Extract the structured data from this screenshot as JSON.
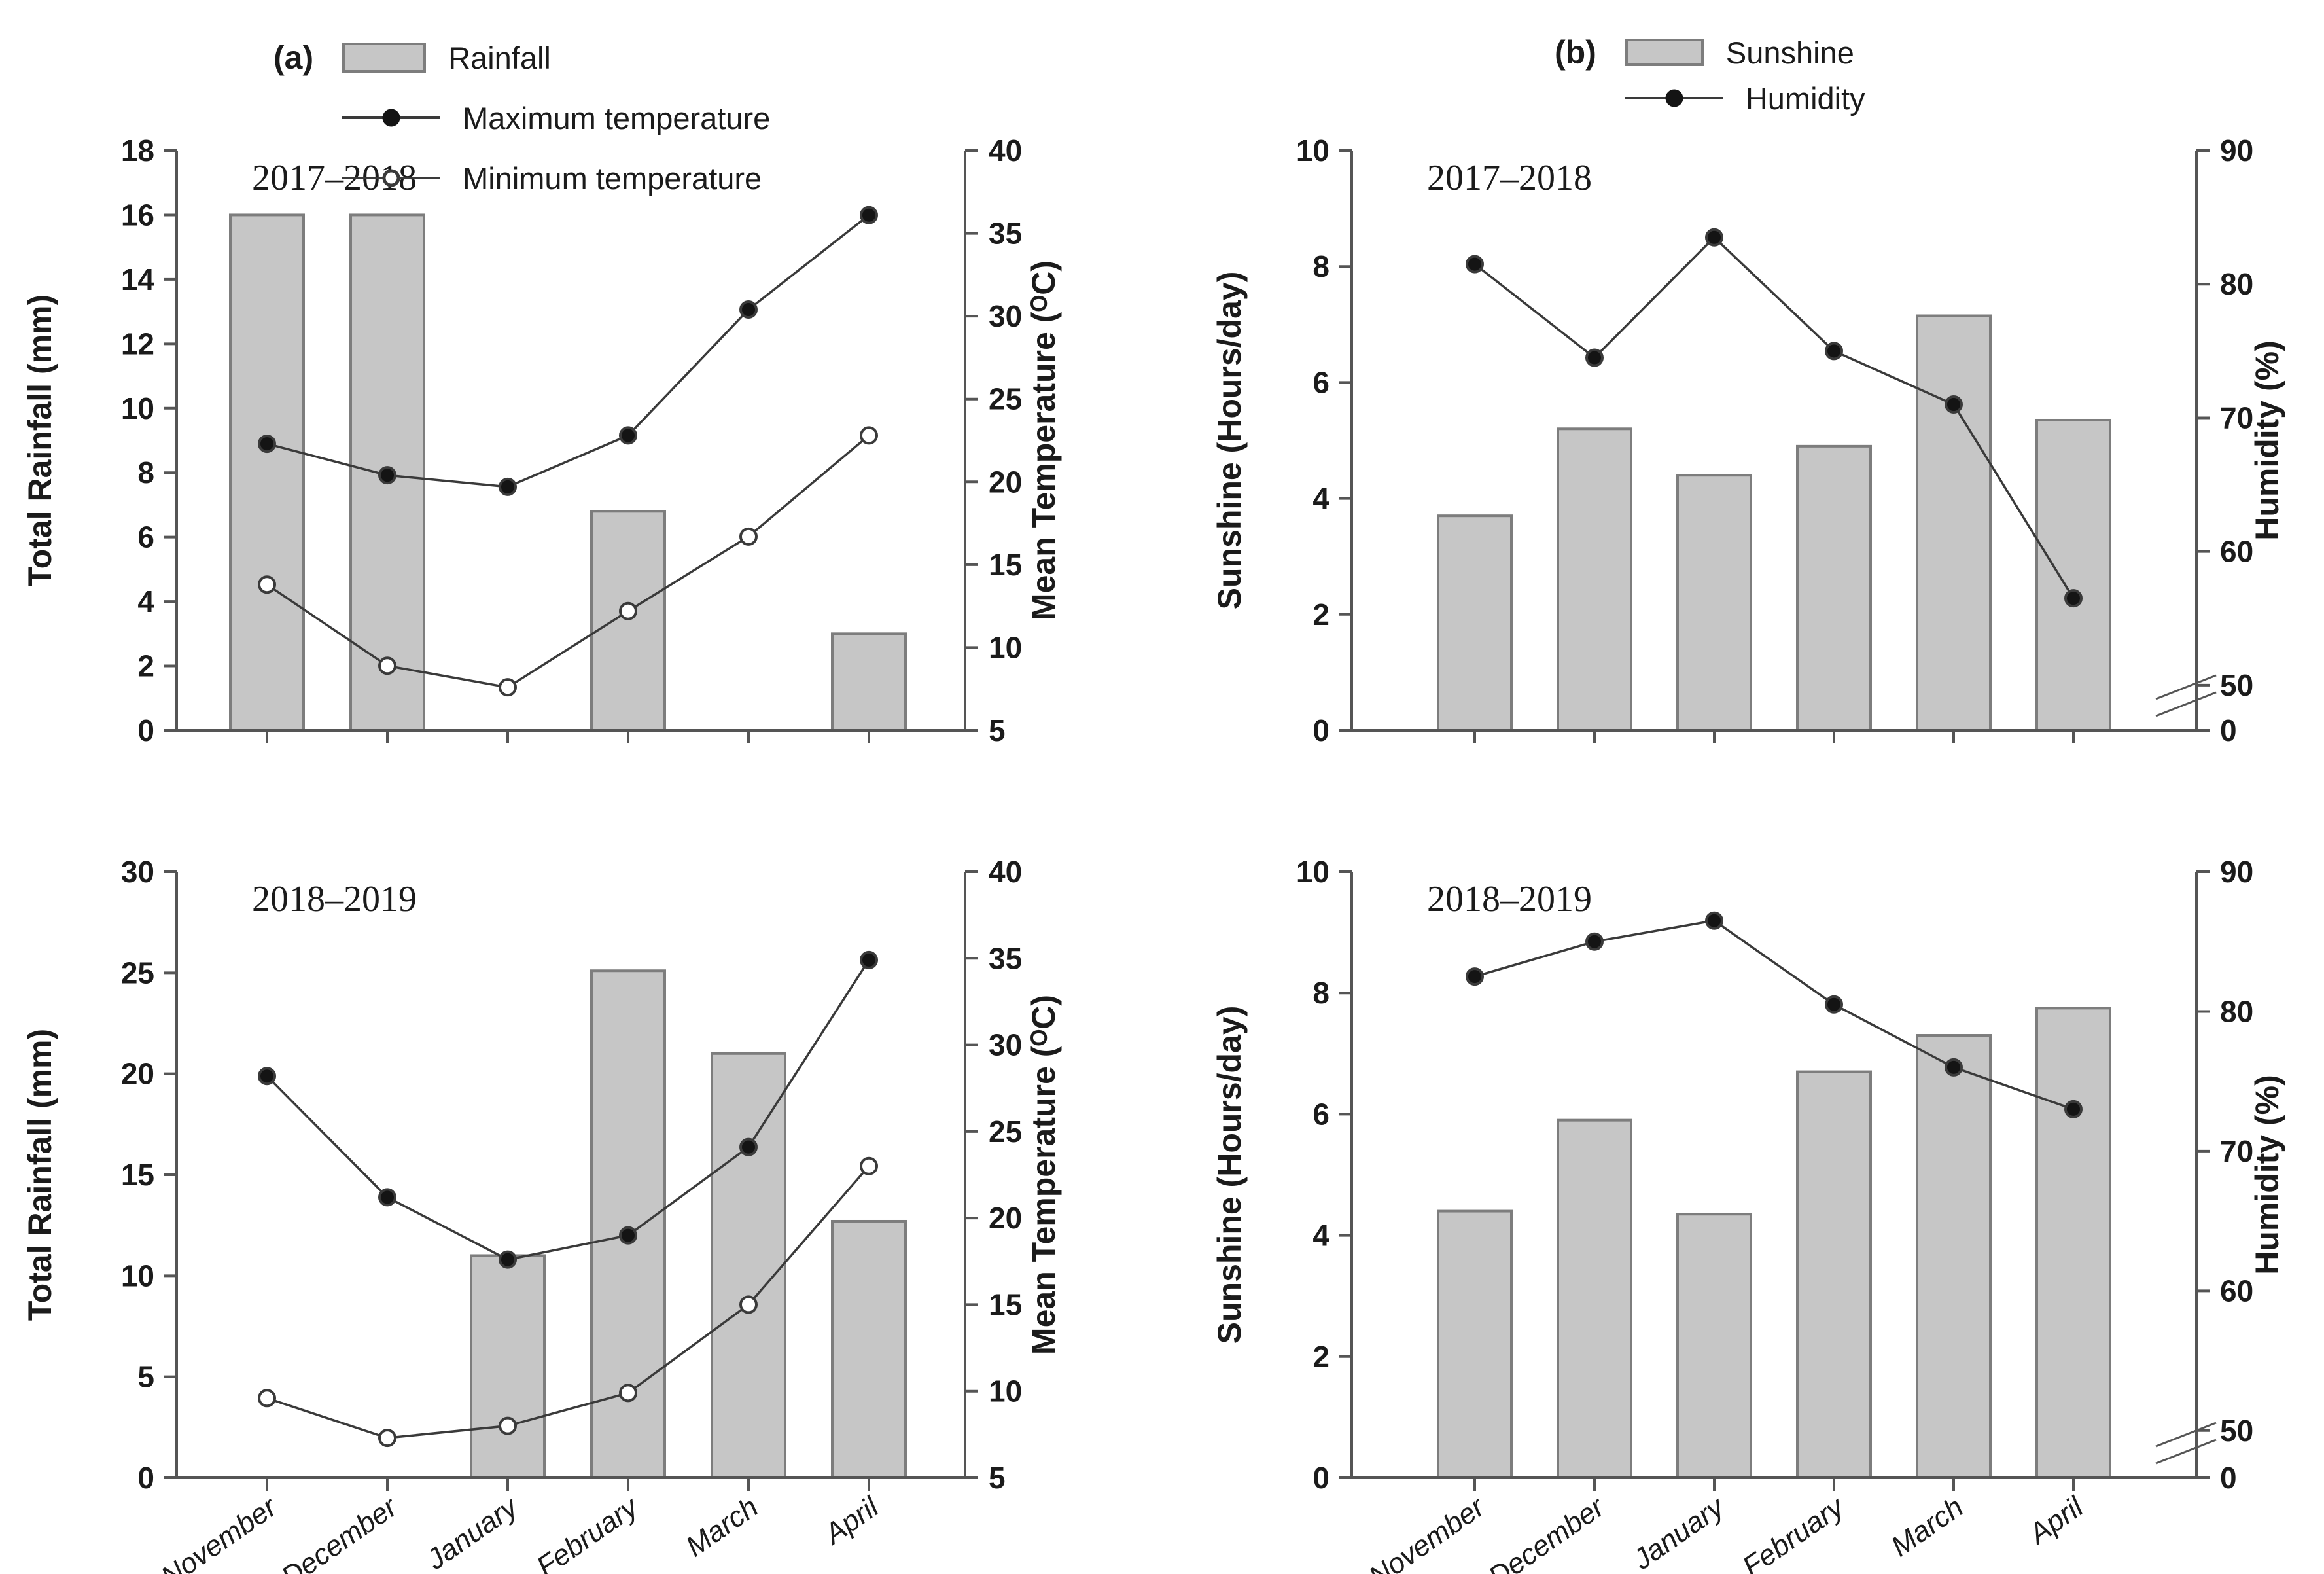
{
  "figure": {
    "panel_a_label": "(a)",
    "panel_b_label": "(b)",
    "months": [
      "November",
      "December",
      "January",
      "February",
      "March",
      "April"
    ]
  },
  "legend_a": {
    "rainfall": "Rainfall",
    "max_temp": "Maximum temperature",
    "min_temp": "Minimum temperature"
  },
  "legend_b": {
    "sunshine": "Sunshine",
    "humidity": "Humidity"
  },
  "colors": {
    "bar_fill": "#c6c6c6",
    "bar_stroke": "#7d7d7d",
    "line": "#3a3a3a",
    "marker_fill": "#141414",
    "axis": "#555555",
    "text": "#1b1b1b"
  },
  "chart_data": [
    {
      "id": "rain_2017",
      "type": "bar+line",
      "title": "2017–2018",
      "categories": [
        "November",
        "December",
        "January",
        "February",
        "March",
        "April"
      ],
      "x_labels_visible": false,
      "left_axis": {
        "label": "Total Rainfall (mm)",
        "min": 0,
        "max": 18,
        "ticks": [
          0,
          2,
          4,
          6,
          8,
          10,
          12,
          14,
          16,
          18
        ]
      },
      "right_axis": {
        "label": "Mean Temperature (ᴼC)",
        "min": 5,
        "max": 40,
        "ticks": [
          5,
          10,
          15,
          20,
          25,
          30,
          35,
          40
        ]
      },
      "series": [
        {
          "name": "Rainfall",
          "type": "bar",
          "axis": "left",
          "values": [
            16,
            16,
            0,
            6.8,
            0,
            3
          ]
        },
        {
          "name": "Maximum temperature",
          "type": "line",
          "marker": "filled-circle",
          "axis": "right",
          "values": [
            22.3,
            20.4,
            19.7,
            22.8,
            30.4,
            36.1
          ]
        },
        {
          "name": "Minimum temperature",
          "type": "line",
          "marker": "open-circle",
          "axis": "right",
          "values": [
            13.8,
            8.9,
            7.6,
            12.2,
            16.7,
            22.8
          ]
        }
      ]
    },
    {
      "id": "rain_2018",
      "type": "bar+line",
      "title": "2018–2019",
      "categories": [
        "November",
        "December",
        "January",
        "February",
        "March",
        "April"
      ],
      "x_labels_visible": true,
      "left_axis": {
        "label": "Total Rainfall (mm)",
        "min": 0,
        "max": 30,
        "ticks": [
          0,
          5,
          10,
          15,
          20,
          25,
          30
        ]
      },
      "right_axis": {
        "label": "Mean Temperature (ᴼC)",
        "min": 5,
        "max": 40,
        "ticks": [
          5,
          10,
          15,
          20,
          25,
          30,
          35,
          40
        ]
      },
      "series": [
        {
          "name": "Rainfall",
          "type": "bar",
          "axis": "left",
          "values": [
            0,
            0,
            11,
            25.1,
            21,
            12.7
          ]
        },
        {
          "name": "Maximum temperature",
          "type": "line",
          "marker": "filled-circle",
          "axis": "right",
          "values": [
            28.2,
            21.2,
            17.6,
            19,
            24.1,
            34.9
          ]
        },
        {
          "name": "Minimum temperature",
          "type": "line",
          "marker": "open-circle",
          "axis": "right",
          "values": [
            9.6,
            7.3,
            8,
            9.9,
            15,
            23
          ]
        }
      ]
    },
    {
      "id": "sun_2017",
      "type": "bar+line",
      "title": "2017–2018",
      "categories": [
        "November",
        "December",
        "January",
        "February",
        "March",
        "April"
      ],
      "x_labels_visible": false,
      "left_axis": {
        "label": "Sunshine (Hours/day)",
        "min": 0,
        "max": 10,
        "ticks": [
          0,
          2,
          4,
          6,
          8,
          10
        ]
      },
      "right_axis": {
        "label": "Humidity (%)",
        "broken": true,
        "lower": 50,
        "upper": 90,
        "ticks": [
          0,
          50,
          60,
          70,
          80,
          90
        ]
      },
      "series": [
        {
          "name": "Sunshine",
          "type": "bar",
          "axis": "left",
          "values": [
            3.7,
            5.2,
            4.4,
            4.9,
            7.15,
            5.35
          ]
        },
        {
          "name": "Humidity",
          "type": "line",
          "marker": "filled-circle",
          "axis": "right",
          "values": [
            81.5,
            74.5,
            83.5,
            75,
            71,
            56.5
          ]
        }
      ]
    },
    {
      "id": "sun_2018",
      "type": "bar+line",
      "title": "2018–2019",
      "categories": [
        "November",
        "December",
        "January",
        "February",
        "March",
        "April"
      ],
      "x_labels_visible": true,
      "left_axis": {
        "label": "Sunshine (Hours/day)",
        "min": 0,
        "max": 10,
        "ticks": [
          0,
          2,
          4,
          6,
          8,
          10
        ]
      },
      "right_axis": {
        "label": "Humidity (%)",
        "broken": true,
        "lower": 50,
        "upper": 90,
        "ticks": [
          0,
          50,
          60,
          70,
          80,
          90
        ]
      },
      "series": [
        {
          "name": "Sunshine",
          "type": "bar",
          "axis": "left",
          "values": [
            4.4,
            5.9,
            4.35,
            6.7,
            7.3,
            7.75
          ]
        },
        {
          "name": "Humidity",
          "type": "line",
          "marker": "filled-circle",
          "axis": "right",
          "values": [
            82.5,
            85,
            86.5,
            80.5,
            76,
            73
          ]
        }
      ]
    }
  ]
}
